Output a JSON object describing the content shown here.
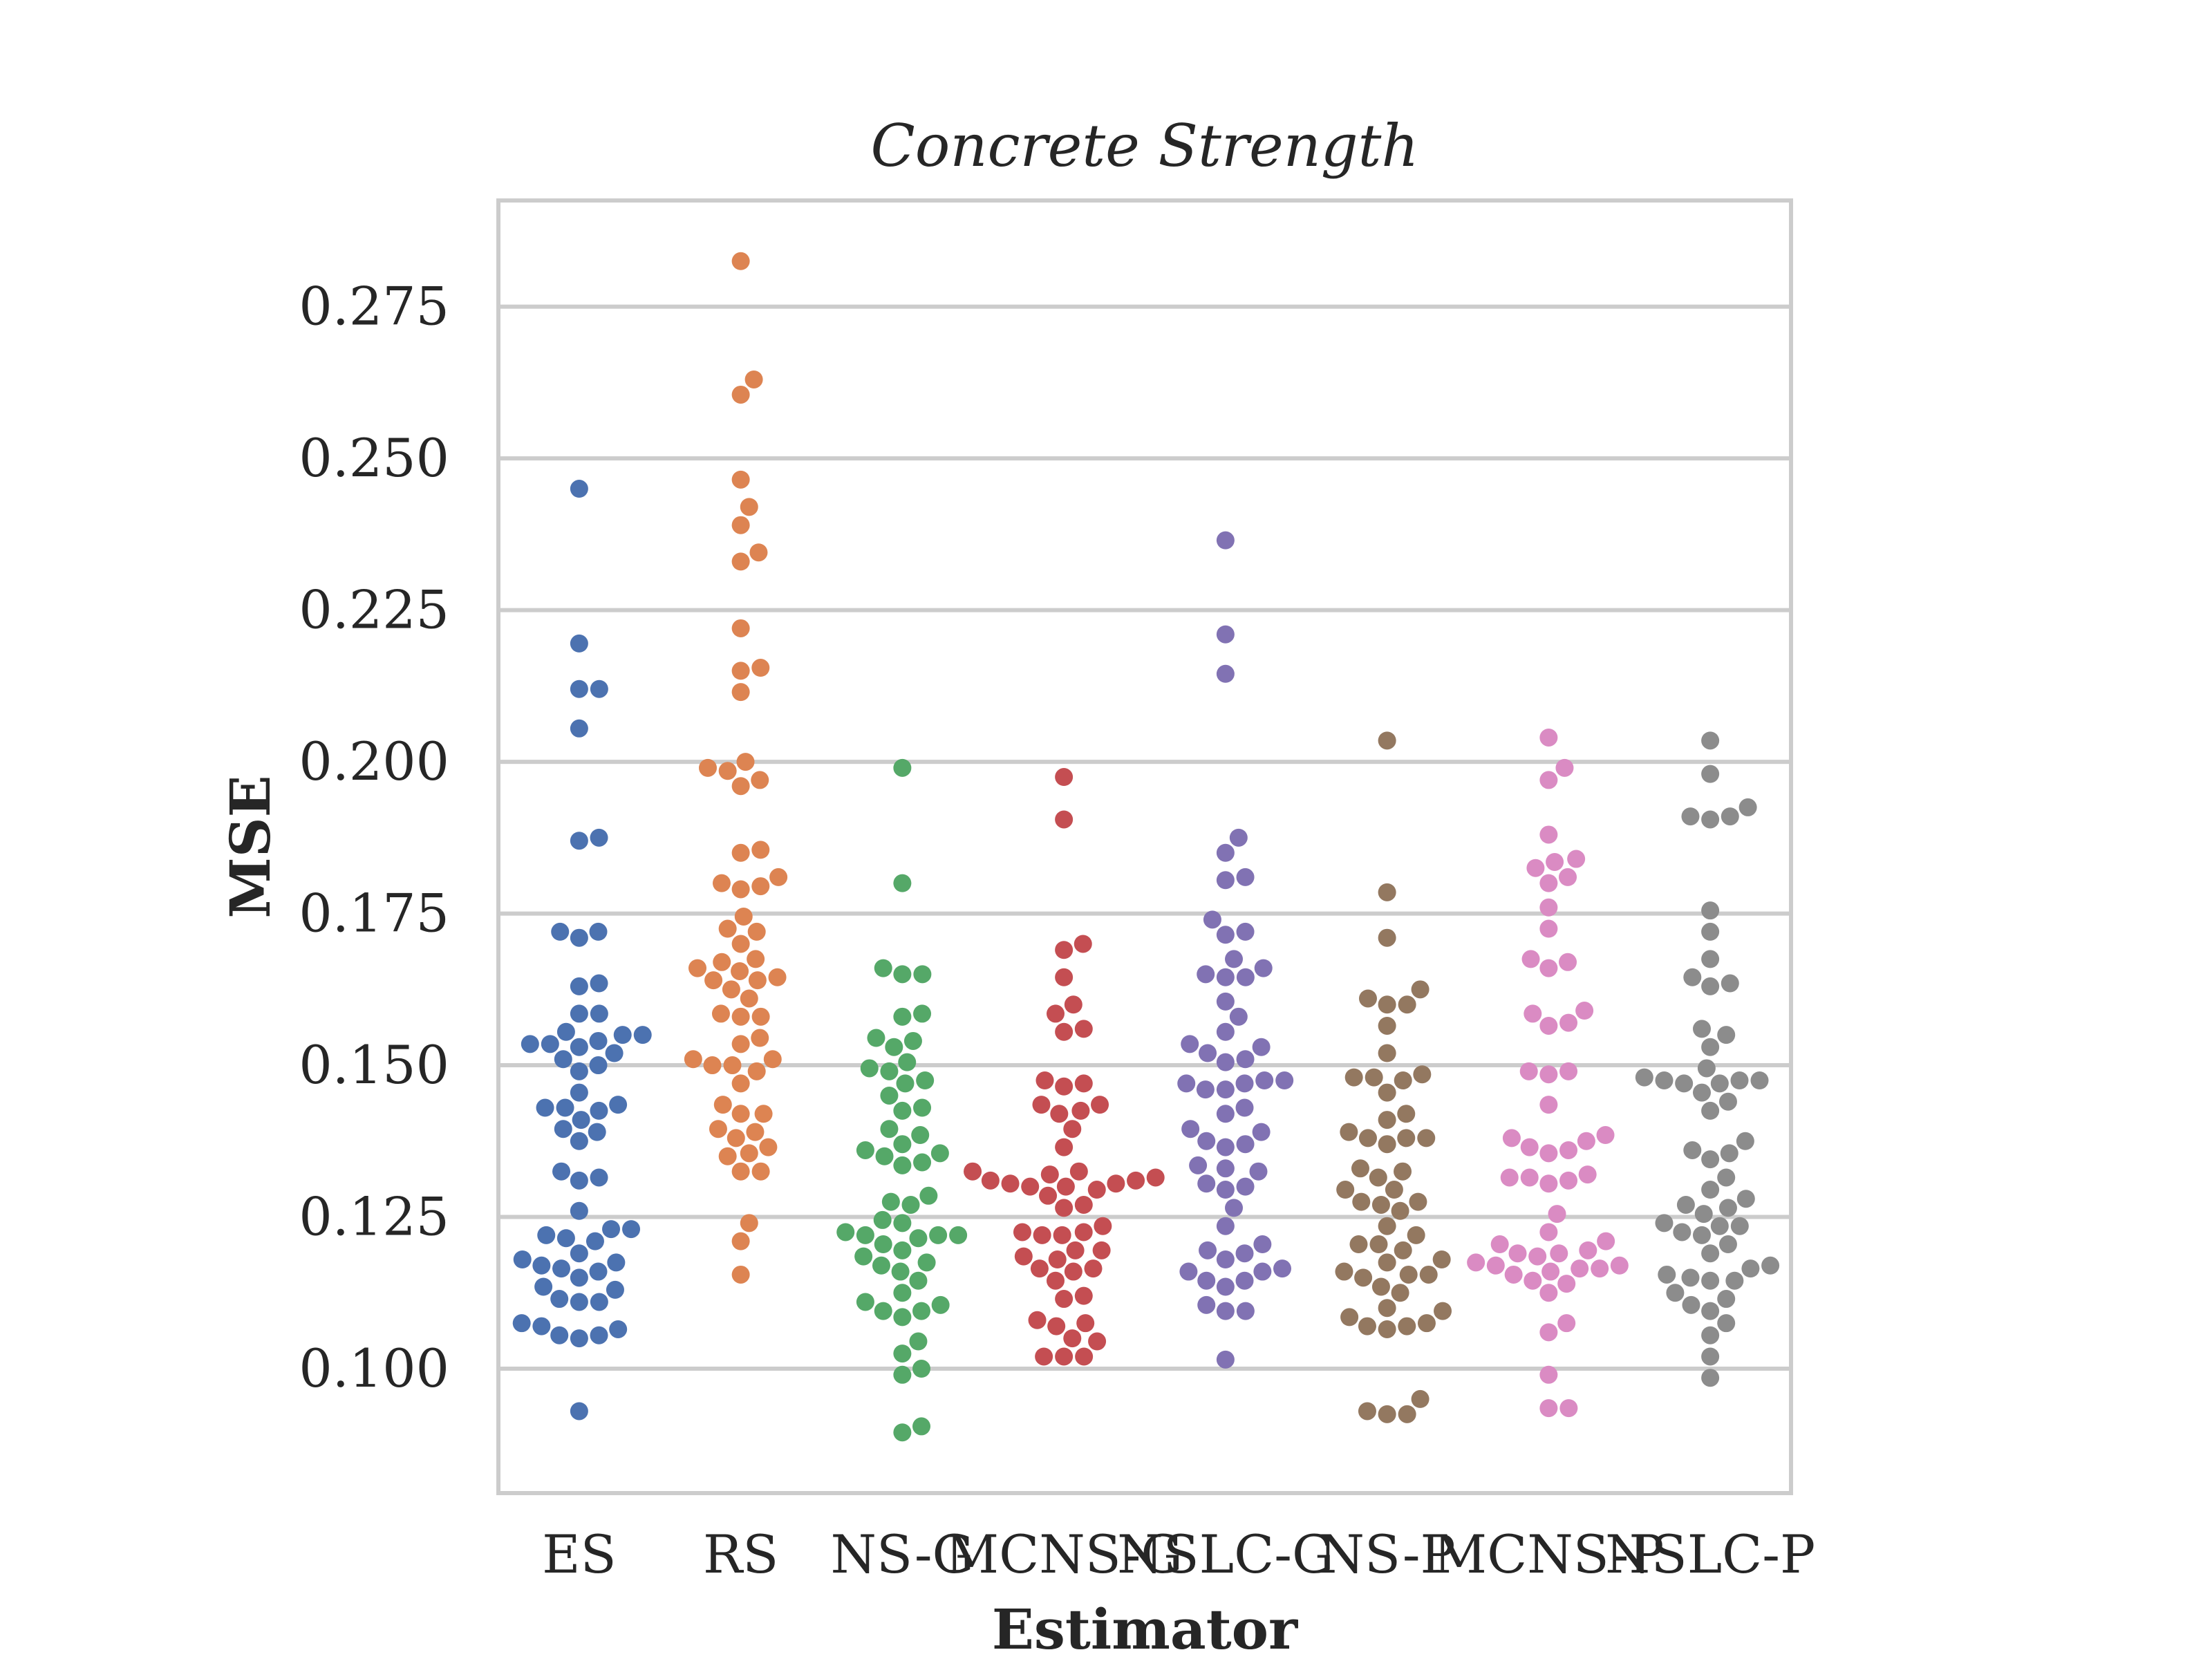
{
  "chart_data": {
    "type": "scatter",
    "subtype": "swarm",
    "title": "Concrete Strength",
    "xlabel": "Estimator",
    "ylabel": "MSE",
    "ylim": [
      0.0795,
      0.2925
    ],
    "yticks": [
      0.1,
      0.125,
      0.15,
      0.175,
      0.2,
      0.225,
      0.25,
      0.275
    ],
    "ytick_labels": [
      "0.100",
      "0.125",
      "0.150",
      "0.175",
      "0.200",
      "0.225",
      "0.250",
      "0.275"
    ],
    "grid": true,
    "categories": [
      "ES",
      "RS",
      "NS-G",
      "MCNS-G",
      "NSLC-G",
      "NS-P",
      "MCNS-P",
      "NSLC-P"
    ],
    "colors": [
      "#4c72b0",
      "#dd8452",
      "#55a868",
      "#c44e52",
      "#8172b3",
      "#937860",
      "#da8bc3",
      "#8c8c8c"
    ],
    "series": [
      {
        "values": [
          0.245,
          0.2195,
          0.212,
          0.212,
          0.2055,
          0.1875,
          0.187,
          0.172,
          0.172,
          0.171,
          0.1635,
          0.163,
          0.1585,
          0.1585,
          0.1555,
          0.155,
          0.155,
          0.154,
          0.1535,
          0.1535,
          0.153,
          0.152,
          0.151,
          0.15,
          0.149,
          0.1455,
          0.1435,
          0.143,
          0.143,
          0.1425,
          0.141,
          0.1395,
          0.139,
          0.1375,
          0.1325,
          0.1315,
          0.131,
          0.126,
          0.123,
          0.123,
          0.122,
          0.1215,
          0.121,
          0.119,
          0.118,
          0.1175,
          0.117,
          0.1165,
          0.116,
          0.115,
          0.1135,
          0.113,
          0.1115,
          0.111,
          0.111,
          0.1075,
          0.107,
          0.1065,
          0.1055,
          0.1055,
          0.105,
          0.093
        ]
      },
      {
        "values": [
          0.2825,
          0.263,
          0.2605,
          0.2465,
          0.242,
          0.239,
          0.2345,
          0.233,
          0.222,
          0.2155,
          0.215,
          0.2115,
          0.2,
          0.199,
          0.1985,
          0.197,
          0.196,
          0.1855,
          0.185,
          0.181,
          0.18,
          0.1795,
          0.179,
          0.1745,
          0.1725,
          0.172,
          0.17,
          0.1675,
          0.167,
          0.166,
          0.1655,
          0.1645,
          0.164,
          0.164,
          0.1625,
          0.161,
          0.1585,
          0.158,
          0.158,
          0.1545,
          0.1535,
          0.151,
          0.151,
          0.15,
          0.15,
          0.149,
          0.147,
          0.1435,
          0.142,
          0.142,
          0.1395,
          0.139,
          0.138,
          0.1365,
          0.1355,
          0.135,
          0.1325,
          0.1325,
          0.124,
          0.121,
          0.1155
        ]
      },
      {
        "values": [
          0.199,
          0.18,
          0.166,
          0.165,
          0.165,
          0.1585,
          0.158,
          0.1545,
          0.154,
          0.153,
          0.1505,
          0.1495,
          0.149,
          0.1475,
          0.147,
          0.145,
          0.143,
          0.1425,
          0.1395,
          0.1385,
          0.137,
          0.136,
          0.1355,
          0.135,
          0.134,
          0.1335,
          0.1285,
          0.1275,
          0.127,
          0.1245,
          0.124,
          0.1225,
          0.122,
          0.122,
          0.122,
          0.1215,
          0.1205,
          0.1195,
          0.1185,
          0.1175,
          0.117,
          0.116,
          0.1145,
          0.1125,
          0.111,
          0.1105,
          0.1095,
          0.1095,
          0.1085,
          0.1045,
          0.1025,
          0.1,
          0.099,
          0.0905,
          0.0895
        ]
      },
      {
        "values": [
          0.1975,
          0.1905,
          0.17,
          0.169,
          0.1645,
          0.16,
          0.1585,
          0.156,
          0.1555,
          0.1475,
          0.147,
          0.1465,
          0.1435,
          0.1435,
          0.1425,
          0.142,
          0.1395,
          0.1365,
          0.1325,
          0.1325,
          0.132,
          0.1315,
          0.131,
          0.131,
          0.1305,
          0.1305,
          0.13,
          0.13,
          0.1295,
          0.1285,
          0.127,
          0.1265,
          0.1235,
          0.1225,
          0.1225,
          0.122,
          0.122,
          0.1195,
          0.1195,
          0.1185,
          0.118,
          0.1165,
          0.1165,
          0.116,
          0.1145,
          0.112,
          0.1115,
          0.108,
          0.1075,
          0.107,
          0.105,
          0.1045,
          0.102,
          0.102,
          0.102
        ]
      },
      {
        "values": [
          0.2365,
          0.221,
          0.2145,
          0.1875,
          0.185,
          0.181,
          0.1805,
          0.174,
          0.172,
          0.1715,
          0.1675,
          0.166,
          0.165,
          0.1645,
          0.1645,
          0.1605,
          0.158,
          0.1555,
          0.1535,
          0.153,
          0.152,
          0.151,
          0.1505,
          0.1475,
          0.1475,
          0.147,
          0.147,
          0.146,
          0.146,
          0.143,
          0.142,
          0.1395,
          0.139,
          0.1375,
          0.137,
          0.1365,
          0.1335,
          0.133,
          0.1325,
          0.1305,
          0.13,
          0.1295,
          0.1265,
          0.1235,
          0.1205,
          0.1195,
          0.119,
          0.118,
          0.1165,
          0.116,
          0.116,
          0.1145,
          0.1145,
          0.1135,
          0.1105,
          0.1095,
          0.1095,
          0.1015
        ]
      },
      {
        "values": [
          0.2035,
          0.1785,
          0.171,
          0.1625,
          0.161,
          0.16,
          0.16,
          0.1565,
          0.152,
          0.1485,
          0.148,
          0.148,
          0.1475,
          0.1455,
          0.142,
          0.141,
          0.139,
          0.138,
          0.138,
          0.138,
          0.137,
          0.133,
          0.1325,
          0.1315,
          0.1295,
          0.1295,
          0.1275,
          0.1275,
          0.127,
          0.126,
          0.1235,
          0.122,
          0.1205,
          0.1205,
          0.1195,
          0.118,
          0.1175,
          0.116,
          0.1155,
          0.1155,
          0.115,
          0.1135,
          0.1125,
          0.11,
          0.1095,
          0.1085,
          0.1075,
          0.107,
          0.107,
          0.1065,
          0.095,
          0.093,
          0.0925,
          0.0925
        ]
      },
      {
        "values": [
          0.204,
          0.199,
          0.197,
          0.188,
          0.184,
          0.1835,
          0.1825,
          0.181,
          0.18,
          0.176,
          0.1725,
          0.1675,
          0.167,
          0.166,
          0.159,
          0.1585,
          0.157,
          0.1565,
          0.149,
          0.149,
          0.1485,
          0.1435,
          0.1385,
          0.138,
          0.1375,
          0.1365,
          0.136,
          0.1355,
          0.132,
          0.1315,
          0.1315,
          0.131,
          0.1305,
          0.1255,
          0.1225,
          0.121,
          0.1205,
          0.1195,
          0.119,
          0.119,
          0.1185,
          0.1175,
          0.117,
          0.117,
          0.1165,
          0.1165,
          0.116,
          0.1155,
          0.1145,
          0.114,
          0.1125,
          0.1075,
          0.106,
          0.099,
          0.0935,
          0.0935
        ]
      },
      {
        "values": [
          0.2035,
          0.198,
          0.1925,
          0.191,
          0.191,
          0.1905,
          0.1755,
          0.172,
          0.1675,
          0.1645,
          0.1635,
          0.163,
          0.156,
          0.155,
          0.153,
          0.1495,
          0.148,
          0.1475,
          0.1475,
          0.1475,
          0.147,
          0.147,
          0.1455,
          0.144,
          0.1425,
          0.1375,
          0.136,
          0.1355,
          0.1345,
          0.1315,
          0.1295,
          0.128,
          0.127,
          0.1265,
          0.1255,
          0.124,
          0.1235,
          0.1235,
          0.1225,
          0.122,
          0.1205,
          0.119,
          0.117,
          0.1165,
          0.1155,
          0.115,
          0.1145,
          0.1145,
          0.1125,
          0.1115,
          0.1105,
          0.1095,
          0.1075,
          0.1055,
          0.102,
          0.0985
        ]
      }
    ]
  }
}
